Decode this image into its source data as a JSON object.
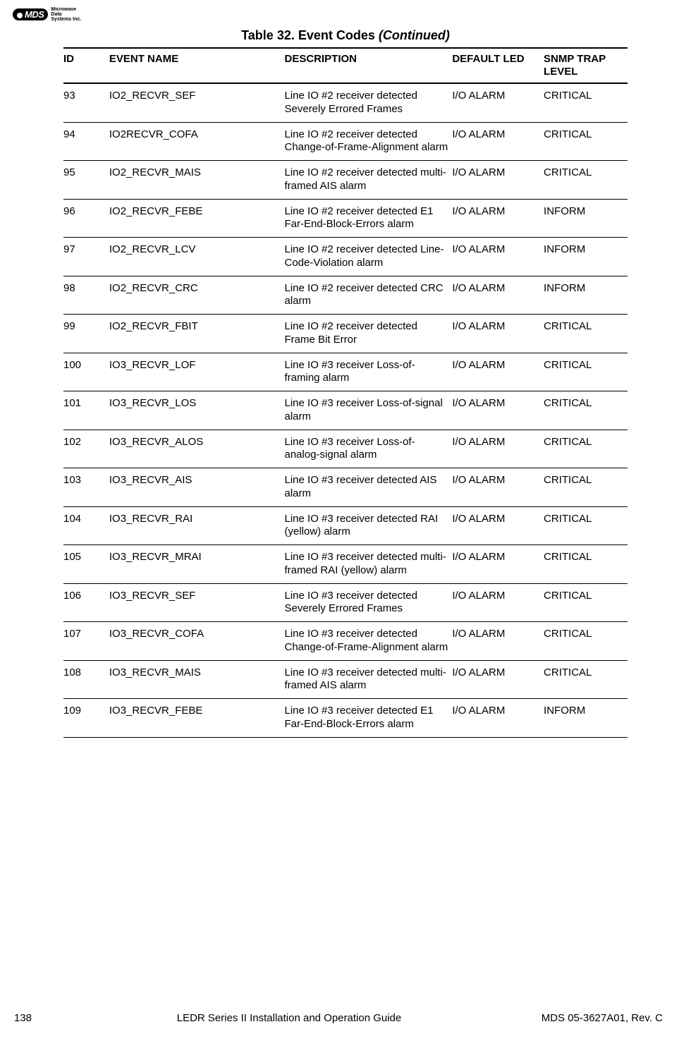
{
  "logo": {
    "badge": "MDS",
    "line1": "Microwave",
    "line2": "Data",
    "line3": "Systems Inc."
  },
  "caption": {
    "prefix": "Table 32. Event Codes ",
    "suffix": "(Continued)"
  },
  "columns": {
    "id": "ID",
    "name": "EVENT NAME",
    "desc": "DESCRIPTION",
    "led": "DEFAULT LED",
    "snmp": "SNMP TRAP LEVEL"
  },
  "rows": [
    {
      "id": "93",
      "name": "IO2_RECVR_SEF",
      "desc": "Line IO #2 receiver detected Severely Errored Frames",
      "led": "I/O ALARM",
      "snmp": "CRITICAL"
    },
    {
      "id": "94",
      "name": "IO2RECVR_COFA",
      "desc": "Line IO #2 receiver detected Change-of-Frame-Alignment alarm",
      "led": "I/O ALARM",
      "snmp": "CRITICAL"
    },
    {
      "id": "95",
      "name": "IO2_RECVR_MAIS",
      "desc": "Line IO #2 receiver detected multi-framed AIS alarm",
      "led": "I/O ALARM",
      "snmp": "CRITICAL"
    },
    {
      "id": "96",
      "name": "IO2_RECVR_FEBE",
      "desc": "Line IO #2 receiver detected E1 Far-End-Block-Errors alarm",
      "led": "I/O ALARM",
      "snmp": "INFORM"
    },
    {
      "id": "97",
      "name": "IO2_RECVR_LCV",
      "desc": "Line IO #2 receiver detected Line-Code-Violation alarm",
      "led": "I/O ALARM",
      "snmp": "INFORM"
    },
    {
      "id": "98",
      "name": "IO2_RECVR_CRC",
      "desc": "Line IO #2 receiver detected CRC alarm",
      "led": "I/O ALARM",
      "snmp": "INFORM"
    },
    {
      "id": "99",
      "name": "IO2_RECVR_FBIT",
      "desc": "Line IO #2 receiver detected Frame Bit Error",
      "led": "I/O ALARM",
      "snmp": "CRITICAL"
    },
    {
      "id": "100",
      "name": "IO3_RECVR_LOF",
      "desc": "Line IO #3 receiver Loss-of-framing alarm",
      "led": "I/O ALARM",
      "snmp": "CRITICAL"
    },
    {
      "id": "101",
      "name": "IO3_RECVR_LOS",
      "desc": "Line IO #3 receiver Loss-of-signal alarm",
      "led": "I/O ALARM",
      "snmp": "CRITICAL"
    },
    {
      "id": "102",
      "name": "IO3_RECVR_ALOS",
      "desc": "Line IO #3 receiver Loss-of-analog-signal alarm",
      "led": "I/O ALARM",
      "snmp": "CRITICAL"
    },
    {
      "id": "103",
      "name": "IO3_RECVR_AIS",
      "desc": "Line IO #3 receiver detected AIS alarm",
      "led": "I/O ALARM",
      "snmp": "CRITICAL"
    },
    {
      "id": "104",
      "name": "IO3_RECVR_RAI",
      "desc": "Line IO #3 receiver detected RAI (yellow) alarm",
      "led": "I/O ALARM",
      "snmp": "CRITICAL"
    },
    {
      "id": "105",
      "name": "IO3_RECVR_MRAI",
      "desc": "Line IO #3 receiver detected multi-framed RAI (yellow) alarm",
      "led": "I/O ALARM",
      "snmp": "CRITICAL"
    },
    {
      "id": "106",
      "name": "IO3_RECVR_SEF",
      "desc": "Line IO #3 receiver detected Severely Errored Frames",
      "led": "I/O ALARM",
      "snmp": "CRITICAL"
    },
    {
      "id": "107",
      "name": "IO3_RECVR_COFA",
      "desc": "Line IO #3 receiver detected Change-of-Frame-Alignment alarm",
      "led": "I/O ALARM",
      "snmp": "CRITICAL"
    },
    {
      "id": "108",
      "name": "IO3_RECVR_MAIS",
      "desc": "Line IO #3 receiver detected multi-framed AIS alarm",
      "led": "I/O ALARM",
      "snmp": "CRITICAL"
    },
    {
      "id": "109",
      "name": "IO3_RECVR_FEBE",
      "desc": "Line IO #3 receiver detected E1 Far-End-Block-Errors alarm",
      "led": "I/O ALARM",
      "snmp": "INFORM"
    }
  ],
  "footer": {
    "page": "138",
    "title": "LEDR Series II Installation and Operation Guide",
    "rev": "MDS 05-3627A01, Rev. C"
  }
}
